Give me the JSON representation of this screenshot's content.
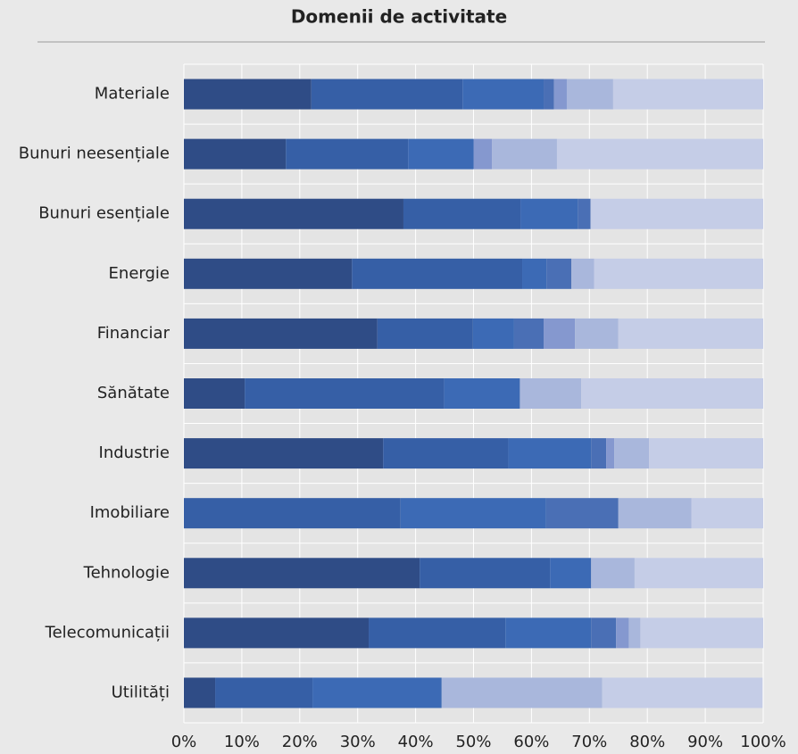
{
  "chart_data": {
    "type": "stacked-bar-horizontal",
    "title": "Domenii de activitate",
    "categories": [
      "Materiale",
      "Bunuri neesențiale",
      "Bunuri esențiale",
      "Energie",
      "Financiar",
      "Sănătate",
      "Industrie",
      "Imobiliare",
      "Tehnologie",
      "Telecomunicații",
      "Utilități"
    ],
    "series": [
      {
        "color": "#2f4c86",
        "values": [
          22.0,
          17.6,
          37.9,
          29.0,
          33.4,
          10.5,
          34.4,
          0,
          40.7,
          31.9,
          5.4
        ]
      },
      {
        "color": "#365fa6",
        "values": [
          26.1,
          21.1,
          20.2,
          29.4,
          16.5,
          34.4,
          21.6,
          37.4,
          22.5,
          23.6,
          16.8
        ]
      },
      {
        "color": "#3c6ab5",
        "values": [
          14.0,
          11.3,
          9.9,
          4.2,
          7.1,
          13.1,
          14.3,
          25.1,
          7.1,
          14.8,
          22.3
        ]
      },
      {
        "color": "#4a6fb5",
        "values": [
          1.8,
          0,
          2.2,
          4.3,
          5.1,
          0,
          2.6,
          12.5,
          0,
          4.3,
          0
        ]
      },
      {
        "color": "#8598cf",
        "values": [
          2.2,
          3.2,
          0,
          0,
          5.4,
          0,
          1.4,
          0,
          0,
          2.2,
          0
        ]
      },
      {
        "color": "#a9b7dc",
        "values": [
          8.0,
          11.2,
          0,
          3.9,
          7.5,
          10.6,
          6.0,
          12.6,
          7.5,
          2.0,
          27.7
        ]
      },
      {
        "color": "#c5cde7",
        "values": [
          25.9,
          35.6,
          29.8,
          29.2,
          25.0,
          31.4,
          19.7,
          12.4,
          22.2,
          21.2,
          27.7
        ]
      }
    ],
    "xlim": [
      0,
      100
    ],
    "xticks": [
      {
        "value": 0,
        "label": "0%"
      },
      {
        "value": 10,
        "label": "10%"
      },
      {
        "value": 20,
        "label": "20%"
      },
      {
        "value": 30,
        "label": "30%"
      },
      {
        "value": 40,
        "label": "40%"
      },
      {
        "value": 50,
        "label": "50%"
      },
      {
        "value": 60,
        "label": "60%"
      },
      {
        "value": 70,
        "label": "70%"
      },
      {
        "value": 80,
        "label": "80%"
      },
      {
        "value": 90,
        "label": "90%"
      },
      {
        "value": 100,
        "label": "100%"
      }
    ],
    "grid": true
  }
}
